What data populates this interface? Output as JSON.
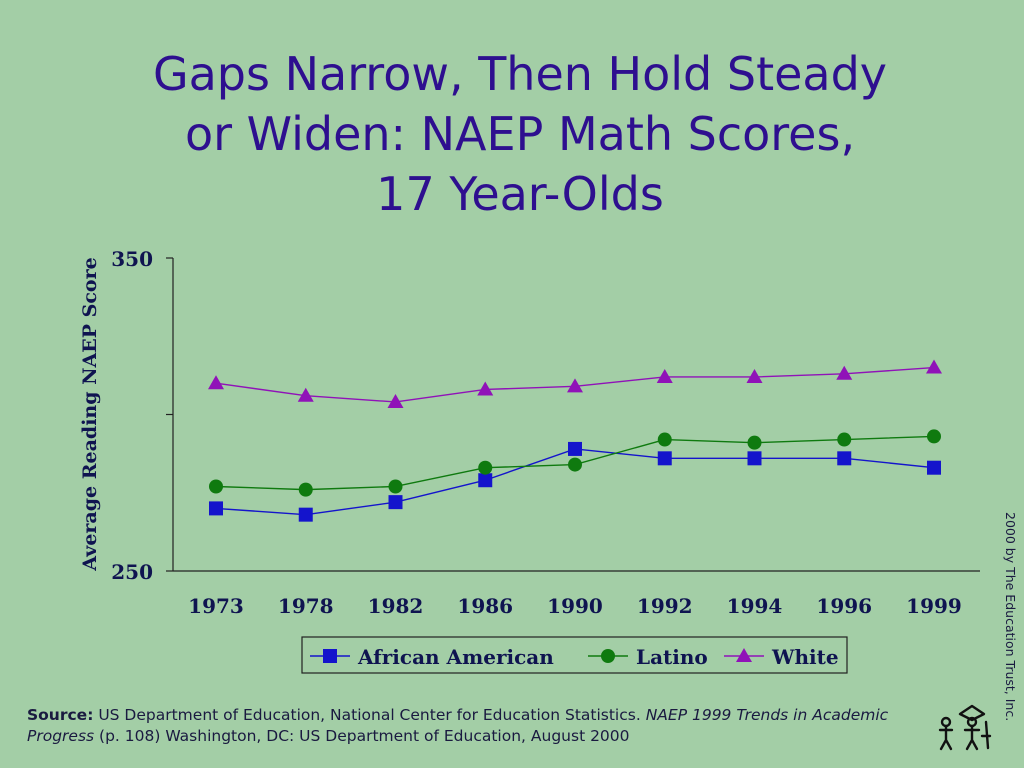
{
  "title_lines": [
    "Gaps Narrow, Then Hold Steady",
    "or Widen: NAEP Math Scores,",
    "17 Year-Olds"
  ],
  "chart_data": {
    "type": "line",
    "title": "Gaps Narrow, Then Hold Steady or Widen: NAEP Math Scores, 17 Year-Olds",
    "xlabel": "",
    "ylabel": "Average Reading NAEP Score",
    "categories": [
      "1973",
      "1978",
      "1982",
      "1986",
      "1990",
      "1992",
      "1994",
      "1996",
      "1999"
    ],
    "ylim": [
      250,
      350
    ],
    "yticks": [
      "350",
      "250"
    ],
    "legend_position": "bottom",
    "grid": false,
    "series": [
      {
        "name": "African American",
        "marker": "square",
        "color": "#1414cc",
        "values": [
          270,
          268,
          272,
          279,
          289,
          286,
          286,
          286,
          283
        ]
      },
      {
        "name": "Latino",
        "marker": "circle",
        "color": "#0f7a0f",
        "values": [
          277,
          276,
          277,
          283,
          284,
          292,
          291,
          292,
          293
        ]
      },
      {
        "name": "White",
        "marker": "triangle",
        "color": "#9012b8",
        "values": [
          310,
          306,
          304,
          308,
          309,
          312,
          312,
          313,
          315
        ]
      }
    ]
  },
  "source": {
    "label": "Source:",
    "text1": " US Department of Education, National Center for Education Statistics. ",
    "italic1": "NAEP 1999 Trends in Academic Progress",
    "text2": " (p. 108) Washington, DC: US  Department of Education, August 2000"
  },
  "copyright": "2000 by The Education Trust, Inc."
}
